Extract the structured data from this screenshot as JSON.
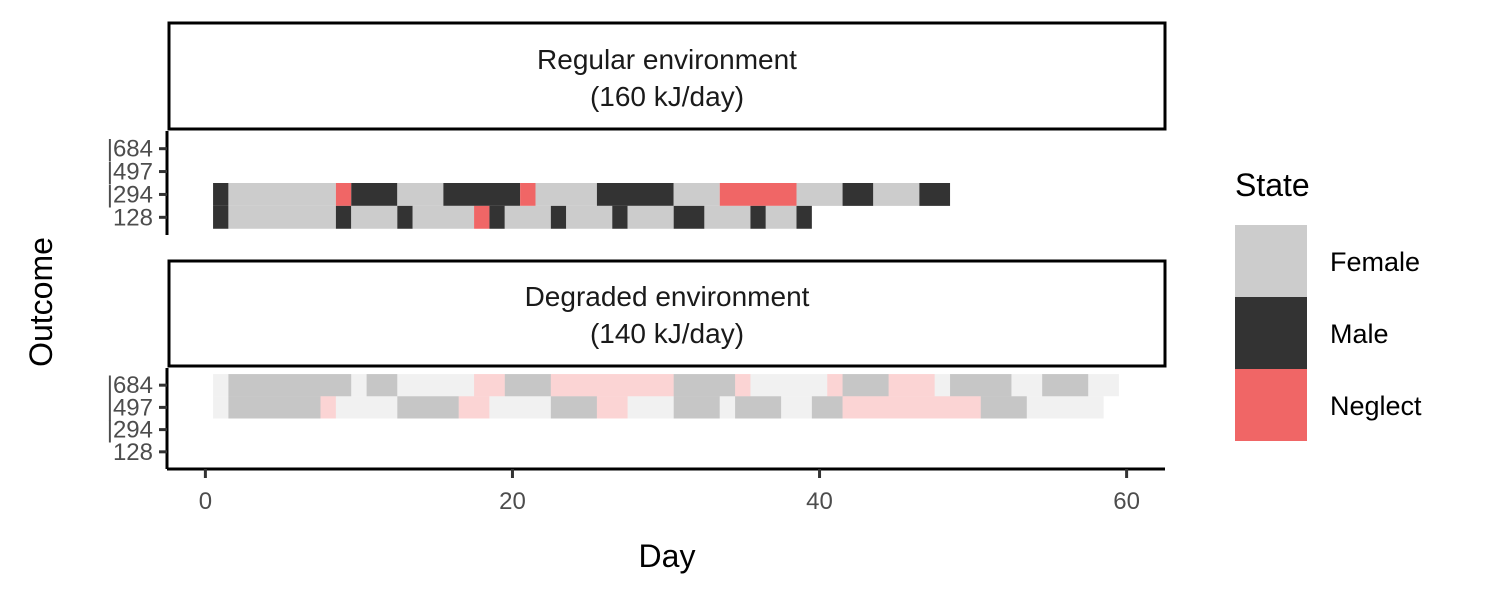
{
  "chart_data": {
    "type": "heatmap",
    "xlabel": "Day",
    "ylabel": "Outcome",
    "xlim": [
      -2.5,
      62.5
    ],
    "x_ticks": [
      "0",
      "20",
      "40",
      "60"
    ],
    "x_tick_values": [
      0,
      20,
      40,
      60
    ],
    "y_categories": [
      "|684",
      "|497",
      "|294",
      "128"
    ],
    "legend": {
      "title": "State",
      "position": "right",
      "entries": [
        {
          "label": "Female",
          "color": "#cccccc"
        },
        {
          "label": "Male",
          "color": "#333333"
        },
        {
          "label": "Neglect",
          "color": "#f06666"
        }
      ]
    },
    "panels": [
      {
        "title_line1": "Regular environment",
        "title_line2": "(160 kJ/day)",
        "rows": [
          {
            "outcome": "|294",
            "segments": [
              {
                "start": 1,
                "end": 1,
                "state": "Male"
              },
              {
                "start": 2,
                "end": 8,
                "state": "Female"
              },
              {
                "start": 9,
                "end": 9,
                "state": "Neglect"
              },
              {
                "start": 10,
                "end": 12,
                "state": "Male"
              },
              {
                "start": 13,
                "end": 15,
                "state": "Female"
              },
              {
                "start": 16,
                "end": 20,
                "state": "Male"
              },
              {
                "start": 21,
                "end": 21,
                "state": "Neglect"
              },
              {
                "start": 22,
                "end": 25,
                "state": "Female"
              },
              {
                "start": 26,
                "end": 30,
                "state": "Male"
              },
              {
                "start": 31,
                "end": 33,
                "state": "Female"
              },
              {
                "start": 34,
                "end": 38,
                "state": "Neglect"
              },
              {
                "start": 39,
                "end": 41,
                "state": "Female"
              },
              {
                "start": 42,
                "end": 43,
                "state": "Male"
              },
              {
                "start": 44,
                "end": 46,
                "state": "Female"
              },
              {
                "start": 47,
                "end": 48,
                "state": "Male"
              }
            ]
          },
          {
            "outcome": "128",
            "segments": [
              {
                "start": 1,
                "end": 1,
                "state": "Male"
              },
              {
                "start": 2,
                "end": 8,
                "state": "Female"
              },
              {
                "start": 9,
                "end": 9,
                "state": "Male"
              },
              {
                "start": 10,
                "end": 12,
                "state": "Female"
              },
              {
                "start": 13,
                "end": 13,
                "state": "Male"
              },
              {
                "start": 14,
                "end": 17,
                "state": "Female"
              },
              {
                "start": 18,
                "end": 18,
                "state": "Neglect"
              },
              {
                "start": 19,
                "end": 19,
                "state": "Male"
              },
              {
                "start": 20,
                "end": 22,
                "state": "Female"
              },
              {
                "start": 23,
                "end": 23,
                "state": "Male"
              },
              {
                "start": 24,
                "end": 26,
                "state": "Female"
              },
              {
                "start": 27,
                "end": 27,
                "state": "Male"
              },
              {
                "start": 28,
                "end": 30,
                "state": "Female"
              },
              {
                "start": 31,
                "end": 32,
                "state": "Male"
              },
              {
                "start": 33,
                "end": 35,
                "state": "Female"
              },
              {
                "start": 36,
                "end": 36,
                "state": "Male"
              },
              {
                "start": 37,
                "end": 38,
                "state": "Female"
              },
              {
                "start": 39,
                "end": 39,
                "state": "Male"
              }
            ]
          }
        ]
      },
      {
        "title_line1": "Degraded environment",
        "title_line2": "(140 kJ/day)",
        "faded": true,
        "rows": [
          {
            "outcome": "|684",
            "segments": [
              {
                "start": 1,
                "end": 1,
                "state": "Female"
              },
              {
                "start": 2,
                "end": 9,
                "state": "Male"
              },
              {
                "start": 10,
                "end": 10,
                "state": "Female"
              },
              {
                "start": 11,
                "end": 12,
                "state": "Male"
              },
              {
                "start": 13,
                "end": 17,
                "state": "Female"
              },
              {
                "start": 18,
                "end": 19,
                "state": "Neglect"
              },
              {
                "start": 20,
                "end": 22,
                "state": "Male"
              },
              {
                "start": 23,
                "end": 30,
                "state": "Neglect"
              },
              {
                "start": 31,
                "end": 34,
                "state": "Male"
              },
              {
                "start": 35,
                "end": 35,
                "state": "Neglect"
              },
              {
                "start": 36,
                "end": 40,
                "state": "Female"
              },
              {
                "start": 41,
                "end": 41,
                "state": "Neglect"
              },
              {
                "start": 42,
                "end": 44,
                "state": "Male"
              },
              {
                "start": 45,
                "end": 47,
                "state": "Neglect"
              },
              {
                "start": 48,
                "end": 48,
                "state": "Female"
              },
              {
                "start": 49,
                "end": 52,
                "state": "Male"
              },
              {
                "start": 53,
                "end": 54,
                "state": "Female"
              },
              {
                "start": 55,
                "end": 57,
                "state": "Male"
              },
              {
                "start": 58,
                "end": 59,
                "state": "Female"
              }
            ]
          },
          {
            "outcome": "|497",
            "segments": [
              {
                "start": 1,
                "end": 1,
                "state": "Female"
              },
              {
                "start": 2,
                "end": 7,
                "state": "Male"
              },
              {
                "start": 8,
                "end": 8,
                "state": "Neglect"
              },
              {
                "start": 9,
                "end": 12,
                "state": "Female"
              },
              {
                "start": 13,
                "end": 16,
                "state": "Male"
              },
              {
                "start": 17,
                "end": 18,
                "state": "Neglect"
              },
              {
                "start": 19,
                "end": 22,
                "state": "Female"
              },
              {
                "start": 23,
                "end": 25,
                "state": "Male"
              },
              {
                "start": 26,
                "end": 27,
                "state": "Neglect"
              },
              {
                "start": 28,
                "end": 30,
                "state": "Female"
              },
              {
                "start": 31,
                "end": 33,
                "state": "Male"
              },
              {
                "start": 34,
                "end": 34,
                "state": "Female"
              },
              {
                "start": 35,
                "end": 37,
                "state": "Male"
              },
              {
                "start": 38,
                "end": 39,
                "state": "Female"
              },
              {
                "start": 40,
                "end": 41,
                "state": "Male"
              },
              {
                "start": 42,
                "end": 50,
                "state": "Neglect"
              },
              {
                "start": 51,
                "end": 53,
                "state": "Male"
              },
              {
                "start": 54,
                "end": 58,
                "state": "Female"
              }
            ]
          }
        ]
      }
    ]
  }
}
